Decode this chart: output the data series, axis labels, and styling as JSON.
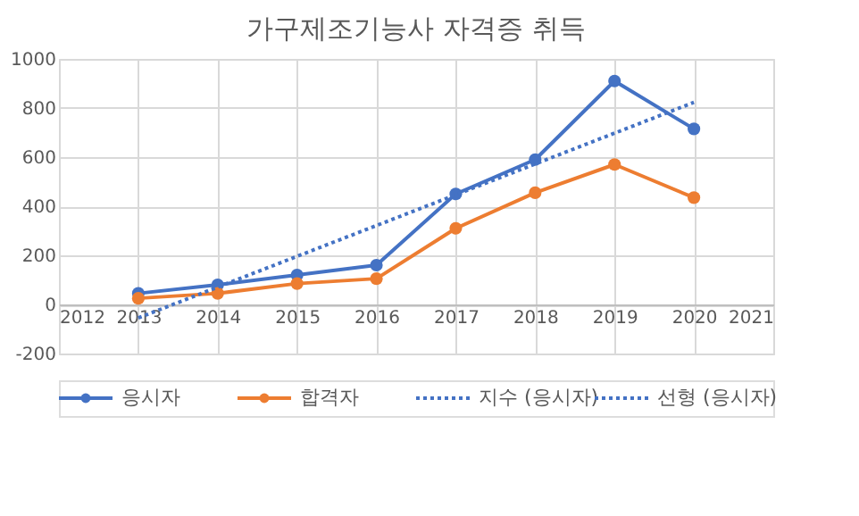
{
  "chart_data": {
    "type": "line",
    "title": "가구제조기능사 자격증 취득",
    "x": [
      2013,
      2014,
      2015,
      2016,
      2017,
      2018,
      2019,
      2020
    ],
    "series": [
      {
        "name": "응시자",
        "color": "#4472c4",
        "marker": "circle",
        "line_style": "solid",
        "values": [
          45,
          80,
          120,
          160,
          450,
          590,
          910,
          715
        ]
      },
      {
        "name": "합격자",
        "color": "#ed7d31",
        "marker": "circle",
        "line_style": "solid",
        "values": [
          25,
          45,
          85,
          105,
          310,
          455,
          570,
          435
        ]
      },
      {
        "name": "지수 (응시자)",
        "color": "#4472c4",
        "type": "line",
        "marker": "none",
        "line_style": "dotted",
        "values": [
          null,
          null,
          null,
          null,
          null,
          null,
          null,
          null
        ]
      },
      {
        "name": "선형 (응시자)",
        "color": "#4472c4",
        "type": "line",
        "marker": "none",
        "line_style": "dotted",
        "x": [
          2013,
          2020
        ],
        "values": [
          -55,
          823
        ]
      }
    ],
    "xlim": [
      2012,
      2021
    ],
    "xticks": [
      2012,
      2013,
      2014,
      2015,
      2016,
      2017,
      2018,
      2019,
      2020,
      2021
    ],
    "ylim": [
      -200,
      1000
    ],
    "yticks": [
      -200,
      0,
      200,
      400,
      600,
      800,
      {
        "value": 1000,
        "label": "1000"
      }
    ],
    "grid": true,
    "legend": "bottom"
  }
}
